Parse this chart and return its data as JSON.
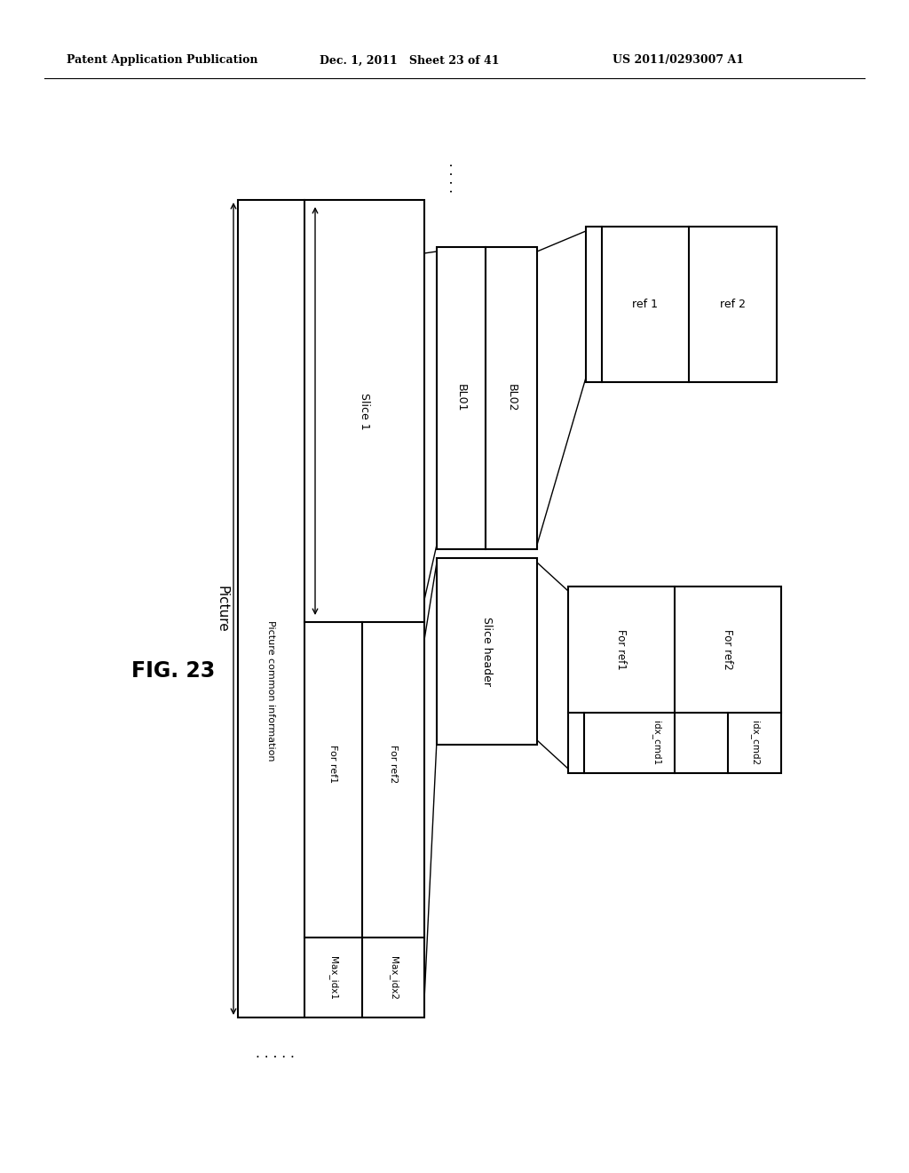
{
  "header_left": "Patent Application Publication",
  "header_mid": "Dec. 1, 2011   Sheet 23 of 41",
  "header_right": "US 2011/0293007 A1",
  "fig_label": "FIG. 23",
  "bg_color": "#ffffff",
  "text_color": "#000000",
  "line_color": "#000000",
  "picture_label": "Picture",
  "slice1_label": "Slice 1",
  "pic_common_label": "Picture common information",
  "for_ref1_label": "For ref1",
  "for_ref2_label_pic": "For ref2",
  "max_idx1_label": "Max_idx1",
  "max_idx2_label": "Max_idx2",
  "slice_header_label": "Slice header",
  "for_ref1_sh_label": "For ref1",
  "for_ref2_sh_label": "For ref2",
  "idx_cmd1_label": "idx_cmd1",
  "idx_cmd2_label": "idx_cmd2",
  "bl01_label": "BL01",
  "bl02_label": "BL02",
  "ref1_label": "ref 1",
  "ref2_label": "ref 2",
  "lw": 1.5,
  "thin_lw": 1.0
}
